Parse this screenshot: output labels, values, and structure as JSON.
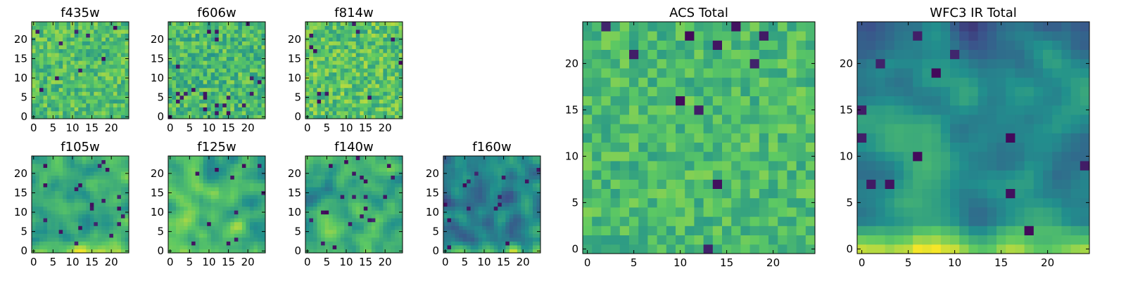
{
  "figure": {
    "background": "#ffffff",
    "colormap": "viridis",
    "colormap_stops": [
      "#440154",
      "#3b528b",
      "#21908d",
      "#5dc963",
      "#fde725"
    ]
  },
  "chart_data": [
    {
      "type": "heatmap",
      "title": "f435w",
      "grid_size": 25,
      "x_ticks": [
        0,
        5,
        10,
        15,
        20
      ],
      "y_ticks": [
        0,
        5,
        10,
        15,
        20
      ],
      "xlim": [
        -0.5,
        24.5
      ],
      "ylim": [
        -0.5,
        24.5
      ],
      "value_range": [
        0,
        1
      ],
      "texture": "noise",
      "seed": 11,
      "description_values": {
        "mean": 0.7,
        "spread": 0.12,
        "dark_fraction": 0.015
      }
    },
    {
      "type": "heatmap",
      "title": "f606w",
      "grid_size": 25,
      "x_ticks": [
        0,
        5,
        10,
        15,
        20
      ],
      "y_ticks": [
        0,
        5,
        10,
        15,
        20
      ],
      "xlim": [
        -0.5,
        24.5
      ],
      "ylim": [
        -0.5,
        24.5
      ],
      "value_range": [
        0,
        1
      ],
      "texture": "noise",
      "seed": 23,
      "description_values": {
        "mean": 0.68,
        "spread": 0.13,
        "dark_fraction": 0.03
      }
    },
    {
      "type": "heatmap",
      "title": "f814w",
      "grid_size": 25,
      "x_ticks": [
        0,
        5,
        10,
        15,
        20
      ],
      "y_ticks": [
        0,
        5,
        10,
        15,
        20
      ],
      "xlim": [
        -0.5,
        24.5
      ],
      "ylim": [
        -0.5,
        24.5
      ],
      "value_range": [
        0,
        1
      ],
      "texture": "noise",
      "seed": 37,
      "description_values": {
        "mean": 0.72,
        "spread": 0.13,
        "dark_fraction": 0.02
      }
    },
    {
      "type": "heatmap",
      "title": "f105w",
      "grid_size": 25,
      "x_ticks": [
        0,
        5,
        10,
        15,
        20
      ],
      "y_ticks": [
        0,
        5,
        10,
        15,
        20
      ],
      "xlim": [
        -0.5,
        24.5
      ],
      "ylim": [
        -0.5,
        24.5
      ],
      "value_range": [
        0,
        1
      ],
      "texture": "smooth",
      "seed": 41,
      "description_values": {
        "mean": 0.62,
        "spread": 0.18,
        "dark_fraction": 0.03,
        "bottom_bright": 0.15
      }
    },
    {
      "type": "heatmap",
      "title": "f125w",
      "grid_size": 25,
      "x_ticks": [
        0,
        5,
        10,
        15,
        20
      ],
      "y_ticks": [
        0,
        5,
        10,
        15,
        20
      ],
      "xlim": [
        -0.5,
        24.5
      ],
      "ylim": [
        -0.5,
        24.5
      ],
      "value_range": [
        0,
        1
      ],
      "texture": "smooth",
      "seed": 53,
      "description_values": {
        "mean": 0.66,
        "spread": 0.18,
        "dark_fraction": 0.02,
        "bottom_bright": 0.18
      }
    },
    {
      "type": "heatmap",
      "title": "f140w",
      "grid_size": 25,
      "x_ticks": [
        0,
        5,
        10,
        15,
        20
      ],
      "y_ticks": [
        0,
        5,
        10,
        15,
        20
      ],
      "xlim": [
        -0.5,
        24.5
      ],
      "ylim": [
        -0.5,
        24.5
      ],
      "value_range": [
        0,
        1
      ],
      "texture": "smooth",
      "seed": 67,
      "description_values": {
        "mean": 0.63,
        "spread": 0.19,
        "dark_fraction": 0.025,
        "bottom_bright": 0.15
      }
    },
    {
      "type": "heatmap",
      "title": "f160w",
      "grid_size": 25,
      "x_ticks": [
        0,
        5,
        10,
        15,
        20
      ],
      "y_ticks": [
        0,
        5,
        10,
        15,
        20
      ],
      "xlim": [
        -0.5,
        24.5
      ],
      "ylim": [
        -0.5,
        24.5
      ],
      "value_range": [
        0,
        1
      ],
      "texture": "smooth",
      "seed": 79,
      "description_values": {
        "mean": 0.45,
        "spread": 0.2,
        "dark_fraction": 0.03,
        "bottom_bright": 0.3
      }
    },
    {
      "type": "heatmap",
      "title": "ACS Total",
      "grid_size": 25,
      "x_ticks": [
        0,
        5,
        10,
        15,
        20
      ],
      "y_ticks": [
        0,
        5,
        10,
        15,
        20
      ],
      "xlim": [
        -0.5,
        24.5
      ],
      "ylim": [
        -0.5,
        24.5
      ],
      "value_range": [
        0,
        1
      ],
      "texture": "noise",
      "seed": 97,
      "description_values": {
        "mean": 0.68,
        "spread": 0.1,
        "dark_fraction": 0.02
      }
    },
    {
      "type": "heatmap",
      "title": "WFC3 IR Total",
      "grid_size": 25,
      "x_ticks": [
        0,
        5,
        10,
        15,
        20
      ],
      "y_ticks": [
        0,
        5,
        10,
        15,
        20
      ],
      "xlim": [
        -0.5,
        24.5
      ],
      "ylim": [
        -0.5,
        24.5
      ],
      "value_range": [
        0,
        1
      ],
      "texture": "smooth",
      "seed": 101,
      "description_values": {
        "mean": 0.5,
        "spread": 0.16,
        "dark_fraction": 0.02,
        "bottom_bright": 0.4,
        "top_dark": 0.2
      }
    }
  ]
}
